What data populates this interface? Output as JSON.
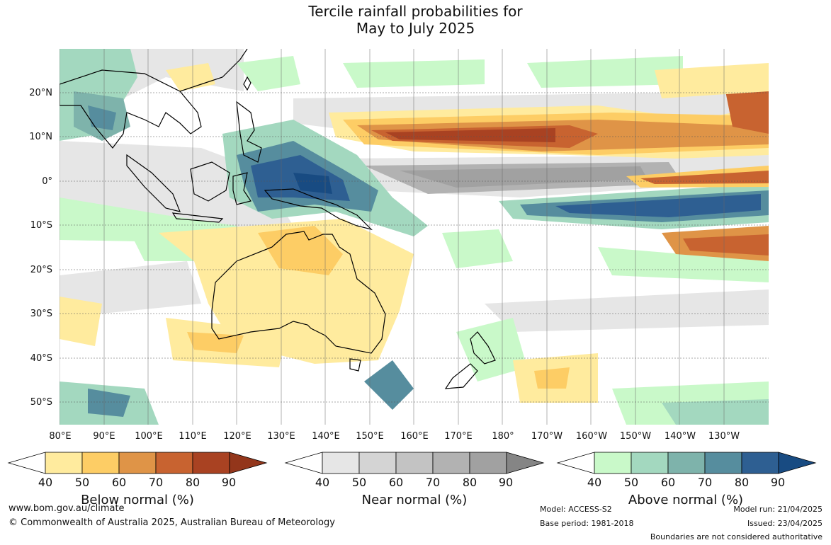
{
  "title_line1": "Tercile rainfall probabilities for",
  "title_line2": "May to July 2025",
  "lat_labels": [
    "20°N",
    "10°N",
    "0°",
    "10°S",
    "20°S",
    "30°S",
    "40°S",
    "50°S"
  ],
  "lon_labels": [
    "80°E",
    "90°E",
    "100°E",
    "110°E",
    "120°E",
    "130°E",
    "140°E",
    "150°E",
    "160°E",
    "170°E",
    "180°",
    "170°W",
    "160°W",
    "150°W",
    "140°W",
    "130°W"
  ],
  "colorbars": [
    {
      "title": "Below normal (%)",
      "ticks": [
        "40",
        "50",
        "60",
        "70",
        "80",
        "90"
      ],
      "colors": [
        "#ffffff",
        "#ffeb9e",
        "#fdcd65",
        "#df9447",
        "#c86330",
        "#a94222",
        "#93361b"
      ]
    },
    {
      "title": "Near normal (%)",
      "ticks": [
        "40",
        "50",
        "60",
        "70",
        "80",
        "90"
      ],
      "colors": [
        "#ffffff",
        "#e6e6e6",
        "#d4d4d4",
        "#c3c3c3",
        "#b2b2b2",
        "#a1a1a1",
        "#858585"
      ]
    },
    {
      "title": "Above normal (%)",
      "ticks": [
        "40",
        "50",
        "60",
        "70",
        "80",
        "90"
      ],
      "colors": [
        "#ffffff",
        "#c9f9c9",
        "#a3d8bf",
        "#7eb3ab",
        "#568d9e",
        "#2e5f92",
        "#184b82"
      ]
    }
  ],
  "footer": {
    "url": "www.bom.gov.au/climate",
    "copyright": "© Commonwealth of Australia 2025, Australian Bureau of Meteorology",
    "model": "Model: ACCESS-S2",
    "base_period": "Base period: 1981-2018",
    "model_run": "Model run: 21/04/2025",
    "issued": "Issued: 23/04/2025",
    "disclaimer": "Boundaries are not considered authoritative"
  }
}
